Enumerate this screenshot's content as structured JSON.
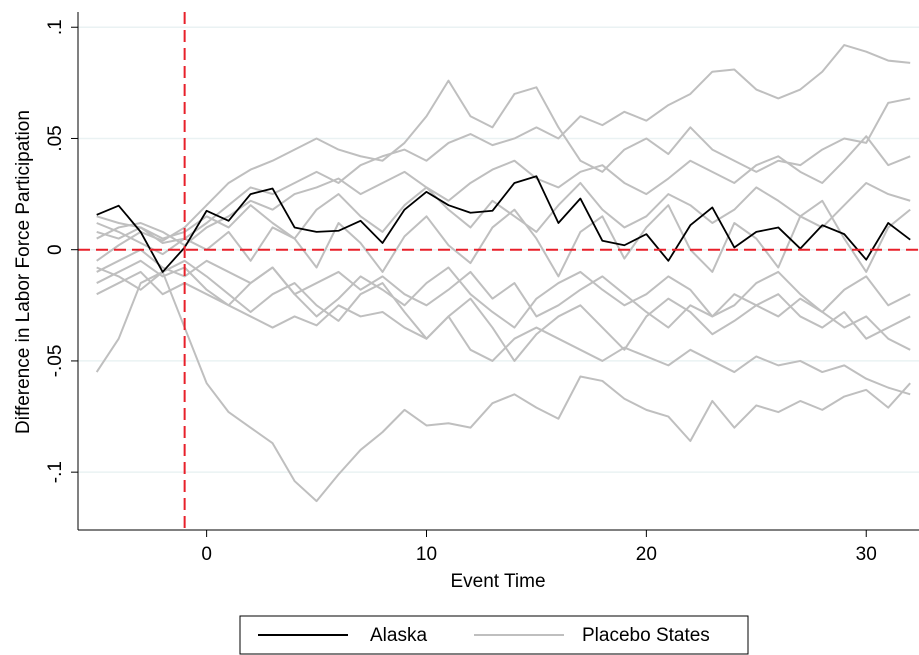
{
  "chart_data": {
    "type": "line",
    "x_label": "Event Time",
    "y_label": "Difference in Labor Force Participation",
    "x": [
      -5,
      -4,
      -3,
      -2,
      -1,
      0,
      1,
      2,
      3,
      4,
      5,
      6,
      7,
      8,
      9,
      10,
      11,
      12,
      13,
      14,
      15,
      16,
      17,
      18,
      19,
      20,
      21,
      22,
      23,
      24,
      25,
      26,
      27,
      28,
      29,
      30,
      31,
      32
    ],
    "xlim": [
      -5.85,
      32.4
    ],
    "xticks": [
      0,
      10,
      20,
      30
    ],
    "ylim": [
      -0.126,
      0.1055
    ],
    "yticks": [
      {
        "value": -0.1,
        "label": "-.1"
      },
      {
        "value": -0.05,
        "label": "-.05"
      },
      0,
      {
        "value": 0.05,
        "label": ".05"
      },
      {
        "value": 0.1,
        "label": ".1"
      }
    ],
    "grid": true,
    "reference_lines": {
      "x": -1,
      "y": 0,
      "color": "#e8202a"
    },
    "legend_position": "bottom",
    "series": [
      {
        "name": "Alaska",
        "color": "#000000",
        "values": [
          0.0157,
          0.0198,
          0.008,
          -0.01,
          0.001,
          0.0175,
          0.013,
          0.025,
          0.0275,
          0.01,
          0.008,
          0.0085,
          0.013,
          0.003,
          0.018,
          0.026,
          0.02,
          0.0166,
          0.0175,
          0.03,
          0.033,
          0.012,
          0.023,
          0.004,
          0.002,
          0.007,
          -0.005,
          0.011,
          0.019,
          0.001,
          0.008,
          0.01,
          0.0005,
          0.011,
          0.007,
          -0.0045,
          0.012,
          0.0045
        ]
      },
      {
        "name": "Placebo States",
        "color": "#bfbfbf",
        "values": [
          [
            -0.055,
            -0.04,
            -0.015,
            -0.01,
            -0.035,
            -0.06,
            -0.073,
            -0.08,
            -0.087,
            -0.104,
            -0.113,
            -0.101,
            -0.09,
            -0.082,
            -0.072,
            -0.079,
            -0.078,
            -0.08,
            -0.069,
            -0.065,
            -0.071,
            -0.076,
            -0.057,
            -0.059,
            -0.067,
            -0.072,
            -0.075,
            -0.086,
            -0.068,
            -0.08,
            -0.07,
            -0.073,
            -0.068,
            -0.072,
            -0.066,
            -0.063,
            -0.071,
            -0.06
          ],
          [
            0.008,
            0.005,
            0.01,
            0.003,
            0.005,
            0.012,
            0.02,
            0.028,
            0.025,
            0.03,
            0.035,
            0.03,
            0.038,
            0.042,
            0.045,
            0.04,
            0.048,
            0.052,
            0.047,
            0.05,
            0.055,
            0.05,
            0.06,
            0.056,
            0.062,
            0.058,
            0.065,
            0.07,
            0.08,
            0.081,
            0.072,
            0.068,
            0.072,
            0.08,
            0.092,
            0.089,
            0.085,
            0.084
          ],
          [
            -0.005,
            0.002,
            0.008,
            0.004,
            0.01,
            0.02,
            0.03,
            0.036,
            0.04,
            0.045,
            0.05,
            0.045,
            0.042,
            0.04,
            0.048,
            0.06,
            0.076,
            0.06,
            0.055,
            0.07,
            0.073,
            0.055,
            0.04,
            0.035,
            0.045,
            0.05,
            0.043,
            0.055,
            0.045,
            0.04,
            0.035,
            0.04,
            0.038,
            0.045,
            0.05,
            0.048,
            0.066,
            0.068
          ],
          [
            -0.02,
            -0.015,
            -0.01,
            -0.02,
            -0.015,
            -0.02,
            -0.025,
            -0.03,
            -0.035,
            -0.03,
            -0.034,
            -0.025,
            -0.03,
            -0.028,
            -0.035,
            -0.04,
            -0.03,
            -0.045,
            -0.05,
            -0.04,
            -0.035,
            -0.04,
            -0.045,
            -0.05,
            -0.044,
            -0.048,
            -0.052,
            -0.045,
            -0.05,
            -0.055,
            -0.048,
            -0.052,
            -0.05,
            -0.055,
            -0.052,
            -0.058,
            -0.062,
            -0.065
          ],
          [
            -0.01,
            -0.005,
            0.0,
            -0.008,
            -0.012,
            -0.005,
            -0.01,
            -0.015,
            -0.008,
            -0.02,
            -0.015,
            -0.01,
            -0.018,
            -0.012,
            -0.02,
            -0.025,
            -0.018,
            -0.01,
            -0.022,
            -0.015,
            -0.03,
            -0.025,
            -0.018,
            -0.012,
            -0.02,
            -0.028,
            -0.035,
            -0.025,
            -0.03,
            -0.02,
            -0.025,
            -0.03,
            -0.022,
            -0.028,
            -0.035,
            -0.03,
            -0.04,
            -0.045
          ],
          [
            0.005,
            0.01,
            0.012,
            0.008,
            0.002,
            0.01,
            0.015,
            0.022,
            0.018,
            0.025,
            0.028,
            0.032,
            0.025,
            0.03,
            0.035,
            0.028,
            0.022,
            0.03,
            0.036,
            0.04,
            0.032,
            0.028,
            0.035,
            0.038,
            0.03,
            0.025,
            0.032,
            0.04,
            0.035,
            0.03,
            0.038,
            0.042,
            0.035,
            0.03,
            0.04,
            0.051,
            0.038,
            0.042
          ],
          [
            0.012,
            0.008,
            0.003,
            -0.002,
            0.005,
            0.0,
            0.008,
            -0.005,
            0.01,
            0.005,
            -0.008,
            0.012,
            0.003,
            -0.01,
            0.006,
            0.015,
            0.002,
            -0.006,
            0.01,
            0.018,
            0.005,
            -0.012,
            0.008,
            0.015,
            -0.004,
            0.01,
            0.02,
            0.0,
            -0.01,
            0.012,
            0.005,
            -0.008,
            0.015,
            0.022,
            0.005,
            -0.01,
            0.01,
            0.018
          ],
          [
            -0.015,
            -0.01,
            -0.005,
            -0.012,
            -0.008,
            -0.018,
            -0.025,
            -0.015,
            -0.008,
            -0.02,
            -0.03,
            -0.022,
            -0.012,
            -0.018,
            -0.025,
            -0.015,
            -0.008,
            -0.02,
            -0.028,
            -0.035,
            -0.022,
            -0.015,
            -0.01,
            -0.018,
            -0.025,
            -0.02,
            -0.012,
            -0.018,
            -0.03,
            -0.025,
            -0.015,
            -0.01,
            -0.02,
            -0.028,
            -0.018,
            -0.012,
            -0.025,
            -0.02
          ],
          [
            0.015,
            0.012,
            0.01,
            0.005,
            0.008,
            0.015,
            0.01,
            0.02,
            0.012,
            0.005,
            0.018,
            0.025,
            0.015,
            0.008,
            0.02,
            0.028,
            0.018,
            0.01,
            0.022,
            0.015,
            0.008,
            0.02,
            0.03,
            0.018,
            0.01,
            0.015,
            0.025,
            0.02,
            0.012,
            0.018,
            0.028,
            0.022,
            0.015,
            0.01,
            0.02,
            0.03,
            0.025,
            0.022
          ],
          [
            -0.008,
            -0.012,
            -0.018,
            -0.01,
            -0.005,
            -0.012,
            -0.02,
            -0.028,
            -0.02,
            -0.015,
            -0.025,
            -0.032,
            -0.02,
            -0.015,
            -0.028,
            -0.04,
            -0.03,
            -0.022,
            -0.035,
            -0.05,
            -0.038,
            -0.03,
            -0.025,
            -0.035,
            -0.045,
            -0.03,
            -0.022,
            -0.028,
            -0.038,
            -0.032,
            -0.025,
            -0.02,
            -0.03,
            -0.035,
            -0.028,
            -0.04,
            -0.035,
            -0.03
          ]
        ]
      }
    ]
  }
}
